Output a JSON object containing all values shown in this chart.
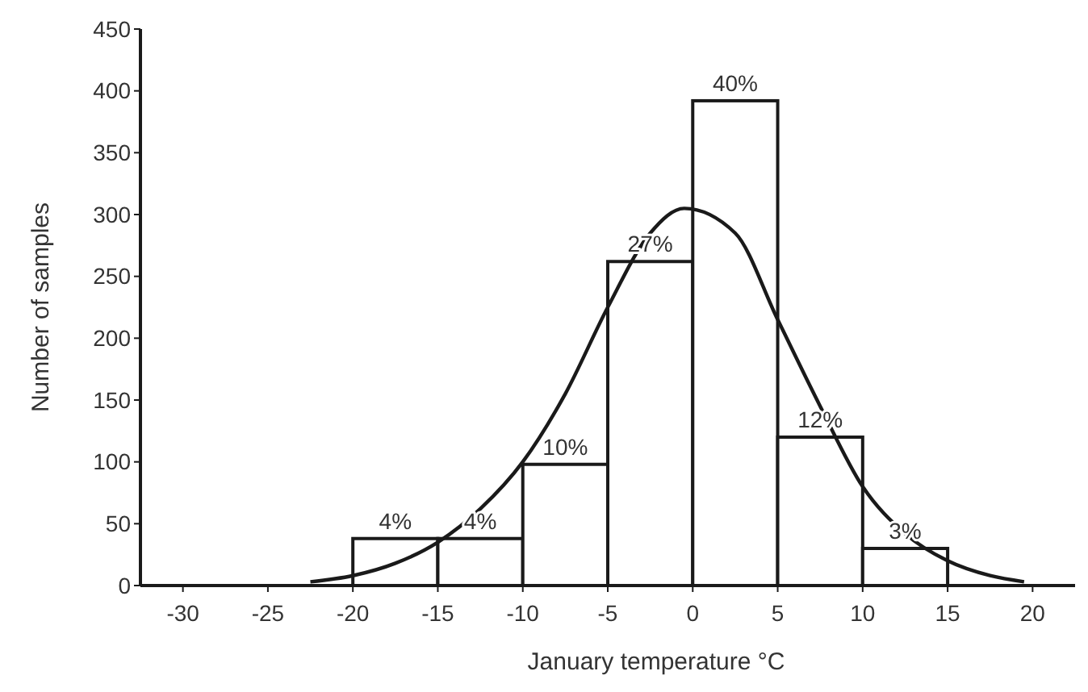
{
  "chart_data": {
    "type": "histogram",
    "xlabel": "January temperature °C",
    "ylabel": "Number of samples",
    "bins": [
      -20,
      -15,
      -10,
      -5,
      0,
      5,
      10,
      15
    ],
    "values": [
      38,
      38,
      98,
      262,
      392,
      120,
      30
    ],
    "color": "#ffffff",
    "annotations": [
      {
        "text": "4%",
        "x": -17.5,
        "y": 38
      },
      {
        "text": "4%",
        "x": -12.5,
        "y": 38
      },
      {
        "text": "10%",
        "x": -7.5,
        "y": 98
      },
      {
        "text": "27%",
        "x": -2.5,
        "y": 262
      },
      {
        "text": "40%",
        "x": 2.5,
        "y": 392
      },
      {
        "text": "12%",
        "x": 7.5,
        "y": 120
      },
      {
        "text": "3%",
        "x": 12.5,
        "y": 30
      }
    ],
    "series": [
      {
        "type": "line",
        "color": "#1a1a1a",
        "x": [
          -22.5,
          -20,
          -17.5,
          -15,
          -12.5,
          -10,
          -7.5,
          -5,
          -2.5,
          -0.5,
          2.5,
          5,
          7.5,
          10,
          12.5,
          15,
          17.5,
          19.5
        ],
        "values": [
          3,
          8,
          18,
          35,
          62,
          100,
          155,
          225,
          285,
          305,
          285,
          215,
          145,
          80,
          42,
          20,
          8,
          3
        ]
      }
    ],
    "xlim": [
      -32.5,
      22.5
    ],
    "xticks": [
      -30,
      -25,
      -20,
      -15,
      -10,
      -5,
      0,
      5,
      10,
      15,
      20
    ],
    "ylim": [
      0,
      450
    ],
    "yticks": [
      0,
      50,
      100,
      150,
      200,
      250,
      300,
      350,
      400,
      450
    ],
    "grid": false
  }
}
